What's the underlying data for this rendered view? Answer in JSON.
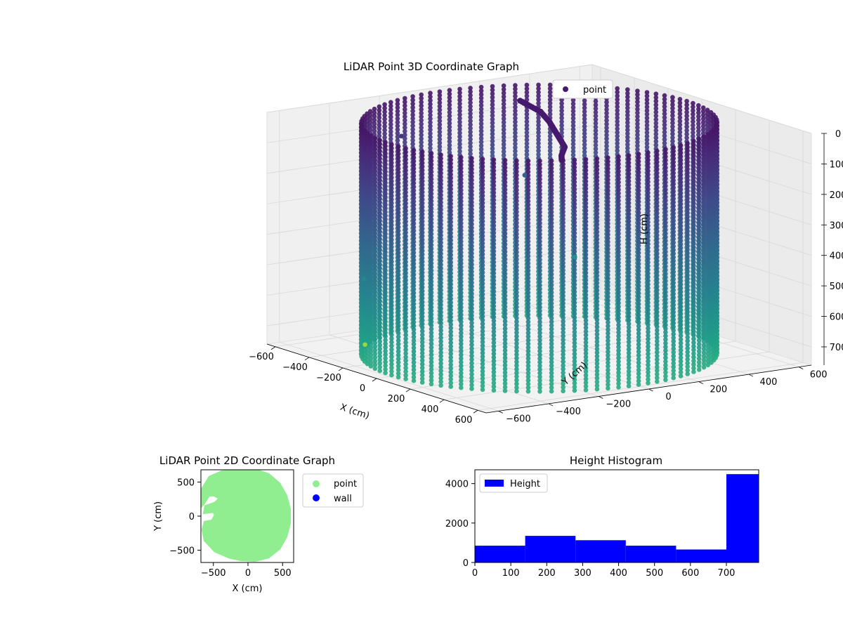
{
  "chart_data": [
    {
      "type": "scatter",
      "projection": "3d",
      "title": "LiDAR Point 3D Coordinate Graph",
      "xlabel": "X (cm)",
      "ylabel": "Y (cm)",
      "zlabel": "H (cm)",
      "x_ticks": [
        -600,
        -400,
        -200,
        0,
        200,
        400,
        600
      ],
      "y_ticks": [
        -600,
        -400,
        -200,
        0,
        200,
        400,
        600
      ],
      "z_ticks": [
        0,
        100,
        200,
        300,
        400,
        500,
        600,
        700
      ],
      "xlim": [
        -650,
        650
      ],
      "ylim": [
        -650,
        650
      ],
      "zlim": [
        0,
        760
      ],
      "z_inverted": true,
      "colormap": "viridis",
      "legend": {
        "position": "upper-right",
        "entries": [
          {
            "label": "point",
            "color": "#46186e"
          }
        ]
      },
      "series": [
        {
          "shape": "cylinder",
          "center": [
            0,
            0
          ],
          "radius": 590,
          "h_range": [
            0,
            760
          ],
          "ceiling_path": [
            [
              -380,
              180
            ],
            [
              -200,
              140
            ],
            [
              -60,
              80
            ],
            [
              60,
              20
            ],
            [
              180,
              -40
            ],
            [
              300,
              -100
            ],
            [
              400,
              -180
            ],
            [
              460,
              -220
            ]
          ],
          "outliers": [
            [
              -650,
              380,
              330
            ],
            [
              -640,
              -120,
              140
            ],
            [
              -560,
              520,
              600
            ],
            [
              -520,
              -350,
              560
            ],
            [
              -380,
              -440,
              740
            ]
          ]
        }
      ],
      "grid": true
    },
    {
      "type": "scatter",
      "title": "LiDAR Point 2D Coordinate Graph",
      "xlabel": "X (cm)",
      "ylabel": "Y (cm)",
      "x_ticks": [
        -500,
        0,
        500
      ],
      "y_ticks": [
        -500,
        0,
        500
      ],
      "xlim": [
        -680,
        660
      ],
      "ylim": [
        -680,
        680
      ],
      "legend": {
        "position": "outside-right",
        "entries": [
          {
            "label": "point",
            "color": "#90ee90"
          },
          {
            "label": "wall",
            "color": "#0000ff"
          }
        ]
      },
      "series": [
        {
          "name": "point",
          "color": "#90ee90",
          "polygon": [
            [
              -380,
              660
            ],
            [
              -100,
              680
            ],
            [
              100,
              690
            ],
            [
              300,
              620
            ],
            [
              460,
              480
            ],
            [
              560,
              300
            ],
            [
              610,
              100
            ],
            [
              610,
              -100
            ],
            [
              560,
              -300
            ],
            [
              460,
              -480
            ],
            [
              300,
              -610
            ],
            [
              100,
              -660
            ],
            [
              -100,
              -650
            ],
            [
              -280,
              -610
            ],
            [
              -480,
              -520
            ],
            [
              -630,
              -360
            ],
            [
              -660,
              -200
            ],
            [
              -630,
              -80
            ],
            [
              -520,
              -60
            ],
            [
              -480,
              20
            ],
            [
              -500,
              60
            ],
            [
              -640,
              40
            ],
            [
              -620,
              150
            ],
            [
              -480,
              200
            ],
            [
              -420,
              260
            ],
            [
              -490,
              300
            ],
            [
              -560,
              300
            ],
            [
              -640,
              170
            ],
            [
              -680,
              130
            ],
            [
              -680,
              380
            ],
            [
              -560,
              580
            ]
          ]
        }
      ]
    },
    {
      "type": "bar",
      "title": "Height Histogram",
      "xlabel": "",
      "ylabel": "",
      "bin_edges": [
        0,
        140,
        280,
        420,
        560,
        700,
        790
      ],
      "values": [
        850,
        1350,
        1130,
        850,
        660,
        4480
      ],
      "x_ticks": [
        0,
        100,
        200,
        300,
        400,
        500,
        600,
        700
      ],
      "y_ticks": [
        0,
        2000,
        4000
      ],
      "xlim": [
        0,
        790
      ],
      "ylim": [
        0,
        4700
      ],
      "color": "#0000ff",
      "legend": {
        "position": "top-left",
        "entries": [
          {
            "label": "Height",
            "color": "#0000ff"
          }
        ]
      }
    }
  ]
}
